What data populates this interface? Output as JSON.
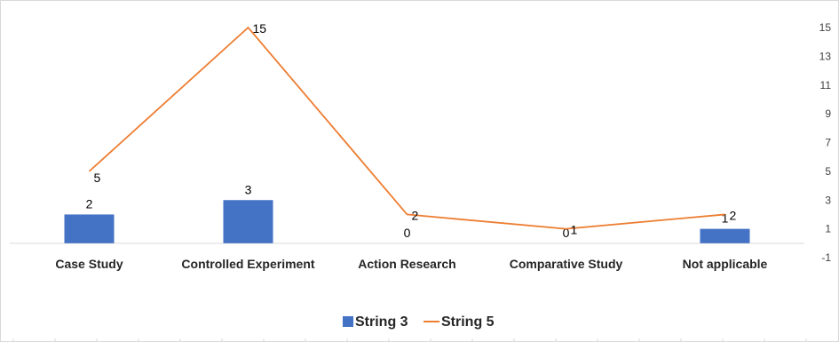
{
  "chart_data": {
    "type": "bar",
    "categories": [
      "Case Study",
      "Controlled Experiment",
      "Action Research",
      "Comparative Study",
      "Not applicable"
    ],
    "series": [
      {
        "name": "String 3",
        "kind": "bar",
        "color": "#4472C4",
        "values": [
          2,
          3,
          0,
          0,
          1
        ]
      },
      {
        "name": "String 5",
        "kind": "line",
        "color": "#ED7D31",
        "values": [
          5,
          15,
          2,
          1,
          2
        ]
      }
    ],
    "yaxis": {
      "position": "right",
      "ticks": [
        15,
        13,
        11,
        9,
        7,
        5,
        3,
        1,
        -1
      ],
      "ylim": [
        -1,
        16
      ]
    },
    "title": "",
    "xlabel": "",
    "ylabel": "",
    "legend": "bottom-center",
    "grid": false
  }
}
